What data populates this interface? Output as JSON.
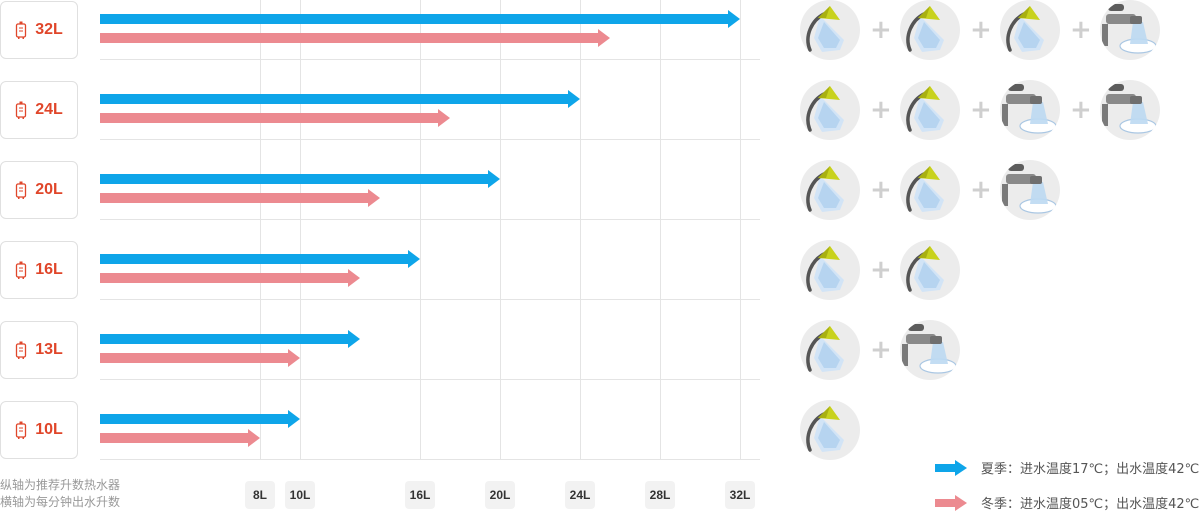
{
  "chart_data": {
    "type": "bar",
    "orientation": "horizontal",
    "categories": [
      "32L",
      "24L",
      "20L",
      "16L",
      "13L",
      "10L"
    ],
    "series": [
      {
        "name": "夏季：进水温度17℃；出水温度42℃",
        "color": "#0ea5e9",
        "values": [
          32,
          24,
          20,
          16,
          13,
          10
        ]
      },
      {
        "name": "冬季：进水温度05℃；出水温度42℃",
        "color": "#ec8a90",
        "values": [
          25.5,
          17.5,
          14,
          13,
          10,
          8
        ]
      }
    ],
    "x_ticks": [
      "8L",
      "10L",
      "16L",
      "20L",
      "24L",
      "28L",
      "32L"
    ],
    "x_tick_values": [
      8,
      10,
      16,
      20,
      24,
      28,
      32
    ],
    "xlim": [
      0,
      32
    ],
    "axis_notes": [
      "纵轴为推荐升数热水器",
      "横轴为每分钟出水升数"
    ],
    "legend_position": "bottom-right",
    "grid": true
  },
  "fixtures": [
    [
      "shower",
      "shower",
      "shower",
      "faucet"
    ],
    [
      "shower",
      "shower",
      "faucet",
      "faucet"
    ],
    [
      "shower",
      "shower",
      "faucet"
    ],
    [
      "shower",
      "shower"
    ],
    [
      "shower",
      "faucet"
    ],
    [
      "shower"
    ]
  ],
  "fixture_icons": {
    "shower": "shower-head-icon",
    "faucet": "faucet-icon"
  },
  "plus_symbol": "+",
  "colors": {
    "category_text": "#e0462a",
    "summer_arrow": "#0ea5e9",
    "winter_arrow": "#ec8a90",
    "grid": "#e4e4e4",
    "shower_head": "#c8d21c",
    "faucet_body": "#8a8a8a"
  }
}
